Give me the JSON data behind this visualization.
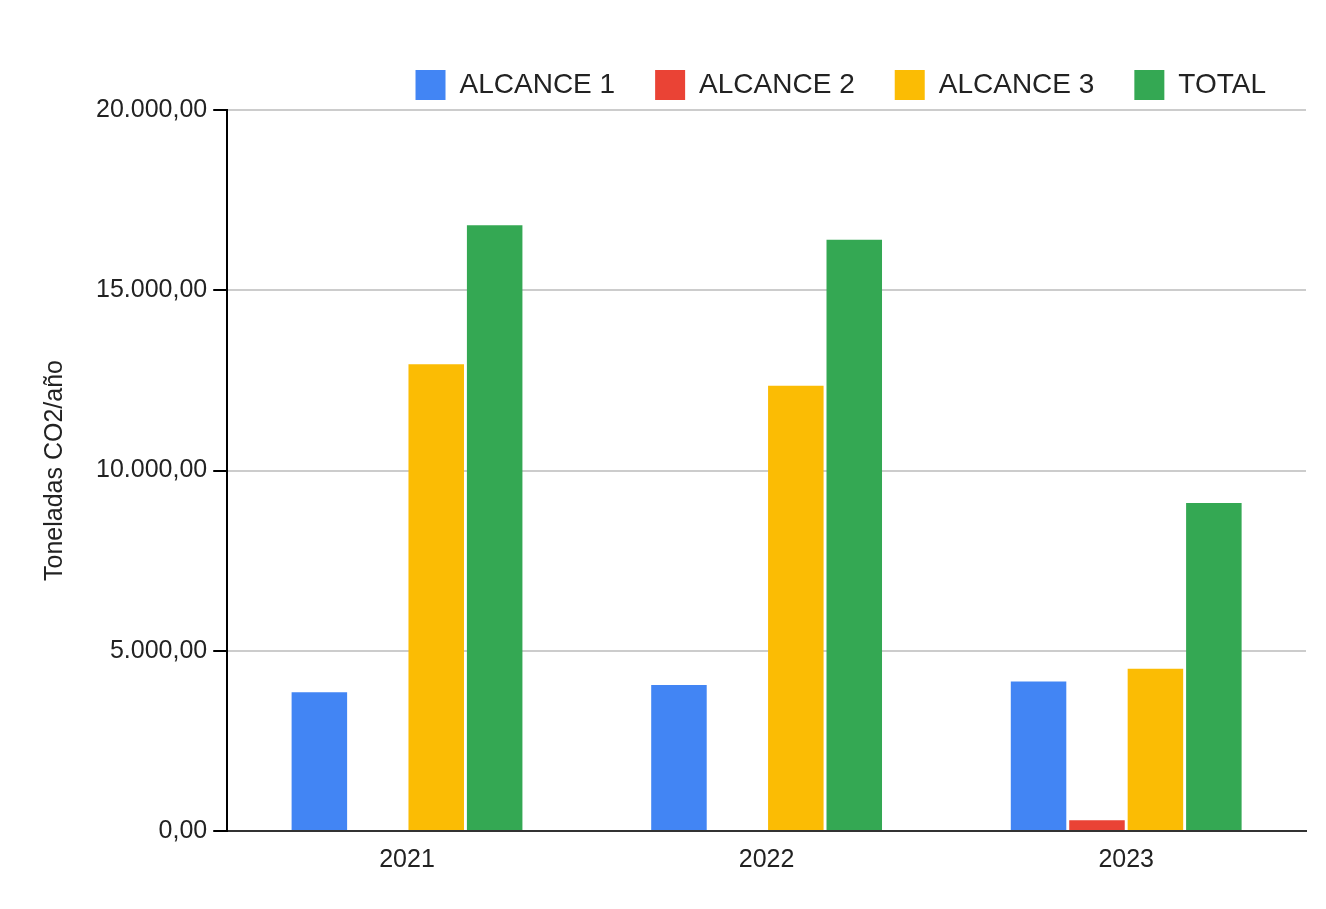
{
  "chart_data": {
    "type": "bar",
    "ylabel": "Toneladas CO2/año",
    "categories": [
      "2021",
      "2022",
      "2023"
    ],
    "series": [
      {
        "name": "ALCANCE 1",
        "color": "#4285f4",
        "values": [
          3850,
          4050,
          4150
        ]
      },
      {
        "name": "ALCANCE 2",
        "color": "#ea4335",
        "values": [
          0,
          0,
          300
        ]
      },
      {
        "name": "ALCANCE 3",
        "color": "#fbbc04",
        "values": [
          12950,
          12350,
          4500
        ]
      },
      {
        "name": "TOTAL",
        "color": "#34a853",
        "values": [
          16800,
          16400,
          9100
        ]
      }
    ],
    "ylim": [
      0,
      20000
    ],
    "yticks": [
      {
        "value": 0,
        "label": "0,00"
      },
      {
        "value": 5000,
        "label": "5.000,00"
      },
      {
        "value": 10000,
        "label": "10.000,00"
      },
      {
        "value": 15000,
        "label": "15.000,00"
      },
      {
        "value": 20000,
        "label": "20.000,00"
      }
    ],
    "grid": "y",
    "legend": "top right"
  }
}
